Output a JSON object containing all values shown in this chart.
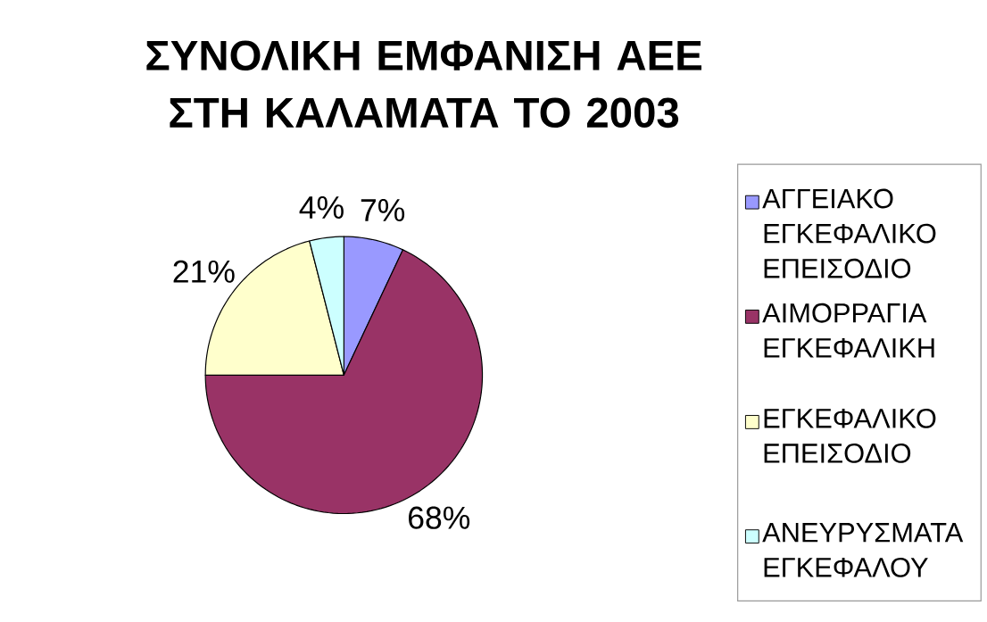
{
  "chart_data": {
    "type": "pie",
    "title": "ΣΥΝΟΛΙΚΗ ΕΜΦΑΝΙΣΗ ΑΕΕ ΣΤΗ ΚΑΛΑΜΑΤΑ ΤΟ 2003",
    "categories": [
      "ΑΓΓΕΙΑΚΟ ΕΓΚΕΦΑΛΙΚΟ ΕΠΕΙΣΟΔΙΟ",
      "ΑΙΜΟΡΡΑΓΙΑ ΕΓΚΕΦΑΛΙΚΗ",
      "ΕΓΚΕΦΑΛΙΚΟ ΕΠΕΙΣΟΔΙΟ",
      "ΑΝΕΥΡΥΣΜΑΤΑ ΕΓΚΕΦΑΛΟΥ"
    ],
    "values": [
      7,
      68,
      21,
      4
    ],
    "value_labels": [
      "7%",
      "68%",
      "21%",
      "4%"
    ],
    "colors": [
      "#9999ff",
      "#993366",
      "#ffffcc",
      "#ccffff"
    ],
    "legend": "right"
  }
}
